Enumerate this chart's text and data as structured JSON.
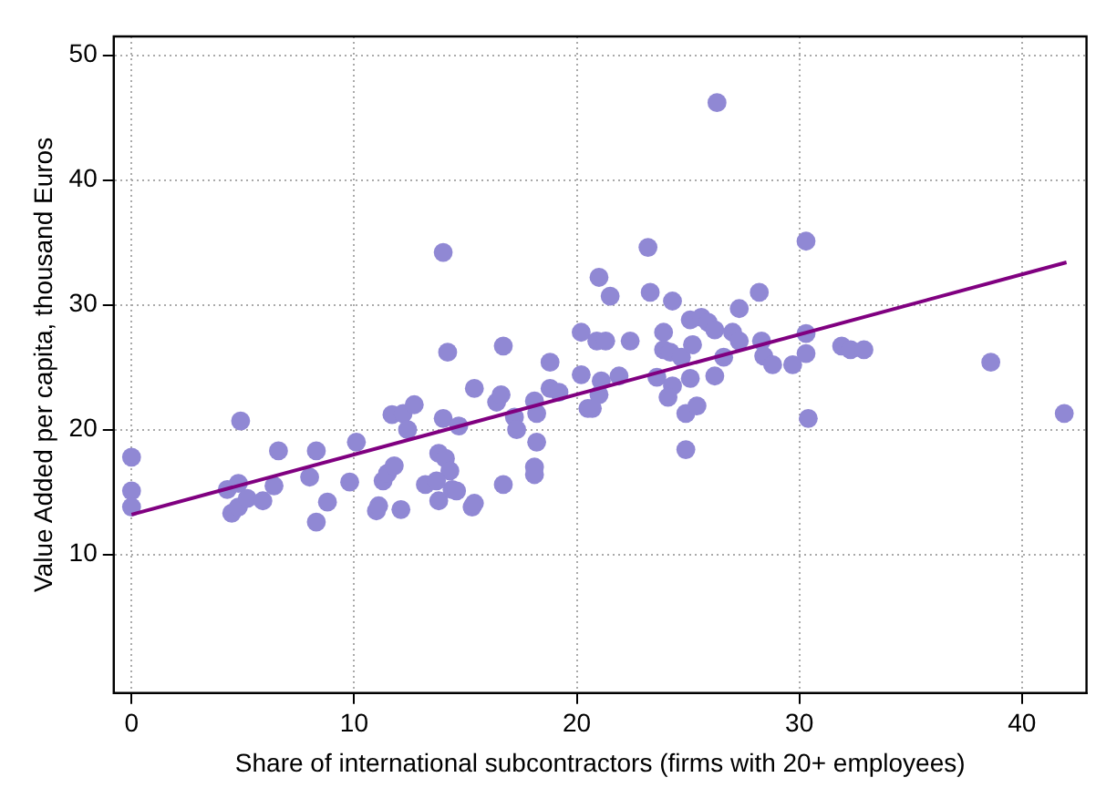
{
  "chart_data": {
    "type": "scatter",
    "xlabel": "Share of international subcontractors (firms with 20+ employees)",
    "ylabel": "Value Added per capita, thousand Euros",
    "xlim": [
      -0.8,
      42.9
    ],
    "ylim": [
      -1.1,
      51.5
    ],
    "xticks": [
      0,
      10,
      20,
      30,
      40
    ],
    "yticks": [
      10,
      20,
      30,
      40,
      50
    ],
    "grid": true,
    "legend": false,
    "marker": "circle",
    "series": [
      {
        "type": "scatter",
        "color": "#9088d4",
        "x": [
          0,
          0,
          0,
          4.3,
          4.8,
          4.9,
          4.5,
          4.8,
          5.2,
          5.9,
          6.4,
          6.6,
          8.0,
          8.3,
          8.3,
          8.8,
          9.8,
          10.1,
          11.0,
          11.1,
          11.3,
          11.5,
          11.8,
          12.1,
          11.7,
          12.2,
          12.7,
          12.4,
          14.0,
          13.8,
          14.1,
          14.3,
          13.2,
          13.7,
          13.8,
          14.4,
          14.0,
          14.2,
          14.6,
          14.7,
          15.4,
          15.3,
          15.4,
          16.4,
          16.6,
          16.7,
          16.7,
          17.2,
          17.3,
          18.1,
          18.1,
          18.2,
          18.1,
          18.2,
          18.8,
          18.8,
          19.2,
          20.2,
          20.2,
          20.5,
          20.7,
          20.9,
          21.3,
          21.0,
          21.5,
          21.1,
          21.0,
          21.9,
          22.4,
          23.2,
          23.3,
          23.6,
          23.9,
          23.9,
          24.2,
          24.3,
          24.3,
          24.1,
          24.7,
          24.9,
          24.9,
          25.1,
          25.1,
          25.2,
          25.4,
          25.6,
          25.9,
          26.2,
          26.2,
          26.6,
          27.0,
          27.3,
          27.3,
          28.2,
          28.3,
          28.4,
          28.8,
          29.7,
          30.3,
          30.3,
          30.4,
          30.3,
          31.9,
          32.3,
          32.9,
          38.6,
          41.9,
          26.3
        ],
        "values": [
          17.8,
          15.1,
          13.8,
          15.2,
          15.7,
          20.7,
          13.3,
          13.8,
          14.5,
          14.3,
          15.5,
          18.3,
          16.2,
          18.3,
          12.6,
          14.2,
          15.8,
          19.0,
          13.5,
          13.9,
          15.9,
          16.5,
          17.1,
          13.6,
          21.2,
          21.3,
          22.0,
          20.0,
          20.9,
          18.1,
          17.7,
          16.7,
          15.6,
          15.9,
          14.3,
          15.2,
          34.2,
          26.2,
          15.1,
          20.3,
          23.3,
          13.8,
          14.1,
          22.2,
          22.8,
          26.7,
          15.6,
          21.0,
          20.0,
          17.0,
          16.4,
          19.0,
          22.3,
          21.3,
          25.4,
          23.3,
          23.0,
          27.8,
          24.4,
          21.7,
          21.7,
          27.1,
          27.1,
          32.2,
          30.7,
          23.9,
          22.8,
          24.3,
          27.1,
          34.6,
          31.0,
          24.2,
          27.8,
          26.4,
          26.2,
          30.3,
          23.5,
          22.6,
          25.8,
          21.3,
          18.4,
          28.8,
          24.1,
          26.8,
          21.9,
          29.0,
          28.6,
          28.0,
          24.3,
          25.8,
          27.8,
          27.1,
          29.7,
          31.0,
          27.1,
          25.9,
          25.2,
          25.2,
          35.1,
          26.1,
          20.9,
          27.7,
          26.7,
          26.4,
          26.4,
          25.4,
          21.3,
          46.2
        ]
      },
      {
        "type": "line",
        "color": "#800080",
        "x": [
          0,
          42
        ],
        "values": [
          13.2,
          33.4
        ],
        "marker": "none"
      }
    ]
  }
}
